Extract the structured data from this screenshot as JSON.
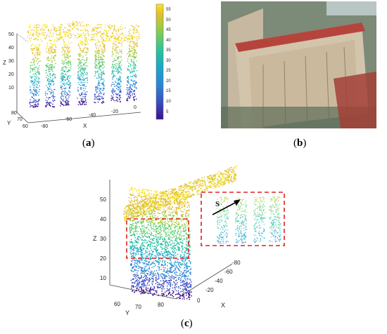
{
  "captions": {
    "a": "a",
    "b": "b",
    "c": "c"
  },
  "panel_a": {
    "z_axis_label": "Z",
    "y_axis_label": "Y",
    "x_axis_label": "X",
    "z_ticks": [
      "10",
      "20",
      "30",
      "40",
      "50"
    ],
    "y_ticks": [
      "60",
      "70",
      "80"
    ],
    "x_ticks": [
      "-80",
      "-60",
      "-40",
      "-20",
      "0"
    ],
    "colorbar_ticks": [
      "5",
      "10",
      "15",
      "20",
      "25",
      "30",
      "35",
      "40",
      "45",
      "50",
      "55"
    ],
    "colormap": [
      "#3e0f8c",
      "#3b4fc4",
      "#2b86d6",
      "#1aa7c9",
      "#27bfa0",
      "#5fcc6d",
      "#a7cc3a",
      "#e3bf2f",
      "#f9e721"
    ]
  },
  "panel_c": {
    "z_axis_label": "Z",
    "y_axis_label": "Y",
    "x_axis_label": "X",
    "z_ticks": [
      "10",
      "20",
      "30",
      "40",
      "50"
    ],
    "y_ticks": [
      "60",
      "70",
      "80"
    ],
    "x_ticks": [
      "0",
      "-20",
      "-40",
      "-60",
      "-80"
    ],
    "inset_label": "S"
  }
}
